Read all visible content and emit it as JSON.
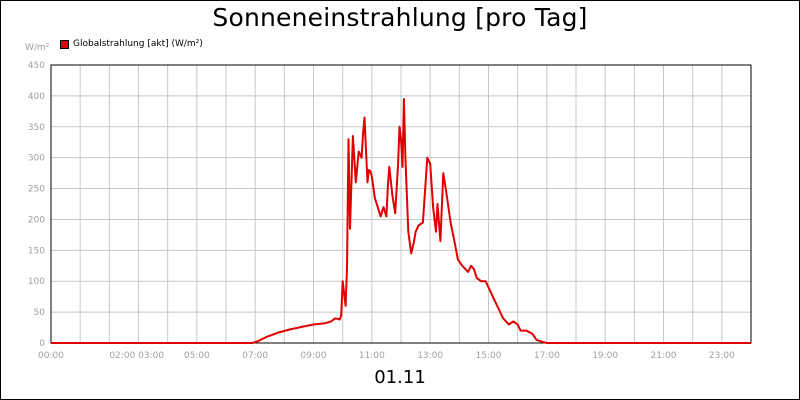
{
  "chart_data": {
    "type": "line",
    "title": "Sonneneinstrahlung [pro Tag]",
    "ylabel": "W/m²",
    "xlabel": "01.11",
    "ylim": [
      0,
      450
    ],
    "yticks": [
      0,
      50,
      100,
      150,
      200,
      250,
      300,
      350,
      400,
      450
    ],
    "xlim": [
      0,
      24
    ],
    "xticks": [
      {
        "x": 0,
        "label": "00:00"
      },
      {
        "x": 2,
        "label": "02:00 03:00"
      },
      {
        "x": 5,
        "label": "05:00"
      },
      {
        "x": 7,
        "label": "07:00"
      },
      {
        "x": 9,
        "label": "09:00"
      },
      {
        "x": 11,
        "label": "11:00"
      },
      {
        "x": 13,
        "label": "13:00"
      },
      {
        "x": 15,
        "label": "15:00"
      },
      {
        "x": 17,
        "label": "17:00"
      },
      {
        "x": 19,
        "label": "19:00"
      },
      {
        "x": 21,
        "label": "21:00"
      },
      {
        "x": 23,
        "label": "23:00"
      }
    ],
    "grid": true,
    "legend_position": "top-left",
    "series": [
      {
        "name": "Globalstrahlung [akt] (W/m²)",
        "color": "#e00000",
        "x": [
          0,
          6.9,
          7.1,
          7.4,
          7.8,
          8.2,
          8.6,
          9.0,
          9.4,
          9.6,
          9.75,
          9.9,
          9.95,
          10.0,
          10.1,
          10.15,
          10.2,
          10.25,
          10.35,
          10.45,
          10.55,
          10.65,
          10.7,
          10.75,
          10.85,
          10.9,
          10.95,
          11.0,
          11.1,
          11.2,
          11.3,
          11.4,
          11.5,
          11.55,
          11.6,
          11.7,
          11.8,
          11.9,
          11.95,
          12.0,
          12.05,
          12.1,
          12.15,
          12.25,
          12.35,
          12.45,
          12.5,
          12.6,
          12.75,
          12.9,
          13.0,
          13.1,
          13.2,
          13.25,
          13.35,
          13.45,
          13.55,
          13.7,
          13.85,
          13.95,
          14.1,
          14.2,
          14.3,
          14.4,
          14.5,
          14.6,
          14.75,
          14.9,
          15.05,
          15.2,
          15.35,
          15.5,
          15.7,
          15.85,
          16.0,
          16.1,
          16.3,
          16.5,
          16.65,
          16.85,
          17.0,
          17.2,
          17.5,
          24
        ],
        "values": [
          0,
          0,
          3,
          10,
          17,
          22,
          26,
          30,
          32,
          35,
          40,
          38,
          45,
          100,
          60,
          120,
          330,
          185,
          335,
          260,
          310,
          300,
          340,
          365,
          260,
          280,
          278,
          270,
          235,
          220,
          205,
          220,
          205,
          255,
          285,
          240,
          210,
          290,
          350,
          330,
          285,
          395,
          300,
          180,
          145,
          165,
          180,
          190,
          195,
          300,
          290,
          220,
          180,
          225,
          165,
          275,
          245,
          195,
          160,
          135,
          125,
          120,
          115,
          125,
          120,
          105,
          100,
          100,
          85,
          70,
          55,
          40,
          30,
          35,
          30,
          20,
          20,
          15,
          5,
          2,
          0,
          0,
          0,
          0
        ]
      }
    ]
  }
}
